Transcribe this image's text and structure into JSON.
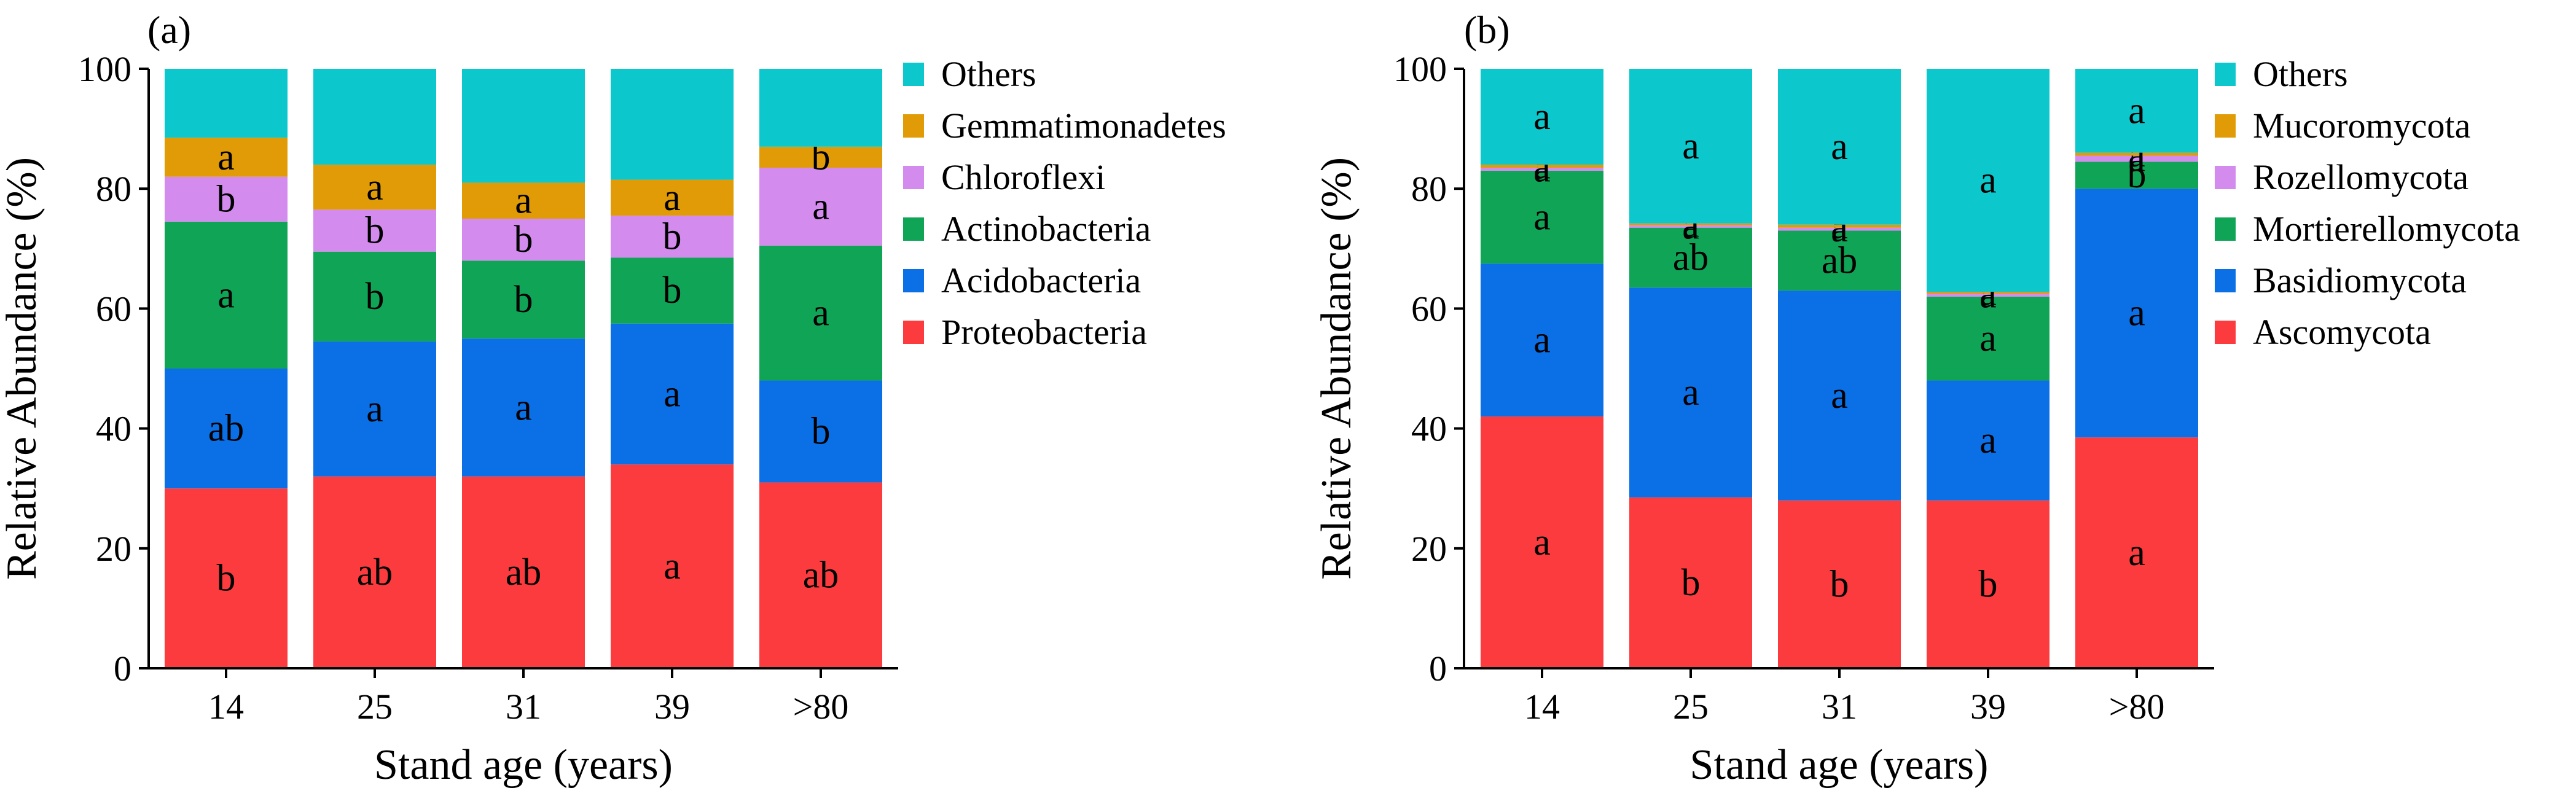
{
  "chart_data": [
    {
      "type": "bar",
      "stacked": true,
      "panel_label": "(a)",
      "title": "",
      "xlabel": "Stand age (years)",
      "ylabel": "Relative Abundance (%)",
      "ylim": [
        0,
        100
      ],
      "yticks": [
        "0",
        "20",
        "40",
        "60",
        "80",
        "100"
      ],
      "categories": [
        "14",
        "25",
        "31",
        "39",
        ">80"
      ],
      "legend_position": "right",
      "series": [
        {
          "name": "Proteobacteria",
          "color": "#fb3b3e",
          "values": [
            30,
            32,
            32,
            34,
            31
          ],
          "labels": [
            "b",
            "ab",
            "ab",
            "a",
            "ab"
          ]
        },
        {
          "name": "Acidobacteria",
          "color": "#0b6fe6",
          "values": [
            20,
            22.5,
            23,
            23.5,
            17
          ],
          "labels": [
            "ab",
            "a",
            "a",
            "a",
            "b"
          ]
        },
        {
          "name": "Actinobacteria",
          "color": "#10a556",
          "values": [
            24.5,
            15,
            13,
            11,
            22.5
          ],
          "labels": [
            "a",
            "b",
            "b",
            "b",
            "a"
          ]
        },
        {
          "name": "Chloroflexi",
          "color": "#d38bee",
          "values": [
            7.5,
            7,
            7,
            7,
            13
          ],
          "labels": [
            "b",
            "b",
            "b",
            "b",
            "a"
          ]
        },
        {
          "name": "Gemmatimonadetes",
          "color": "#e09b06",
          "values": [
            6.5,
            7.5,
            6,
            6,
            3.5
          ],
          "labels": [
            "a",
            "a",
            "a",
            "a",
            "b"
          ]
        },
        {
          "name": "Others",
          "color": "#0cc8cc",
          "values": [
            11.5,
            16,
            19,
            18.5,
            13
          ],
          "labels": [
            "",
            "",
            "",
            "",
            ""
          ]
        }
      ]
    },
    {
      "type": "bar",
      "stacked": true,
      "panel_label": "(b)",
      "title": "",
      "xlabel": "Stand age (years)",
      "ylabel": "Relative Abundance (%)",
      "ylim": [
        0,
        100
      ],
      "yticks": [
        "0",
        "20",
        "40",
        "60",
        "80",
        "100"
      ],
      "categories": [
        "14",
        "25",
        "31",
        "39",
        ">80"
      ],
      "legend_position": "right",
      "series": [
        {
          "name": "Ascomycota",
          "color": "#fb3b3e",
          "values": [
            42,
            28.5,
            28,
            28,
            38.5
          ],
          "labels": [
            "a",
            "b",
            "b",
            "b",
            "a"
          ]
        },
        {
          "name": "Basidiomycota",
          "color": "#0b6fe6",
          "values": [
            25.5,
            35,
            35,
            20,
            41.5
          ],
          "labels": [
            "a",
            "a",
            "a",
            "a",
            "a"
          ]
        },
        {
          "name": "Mortierellomycota",
          "color": "#10a556",
          "values": [
            15.5,
            10,
            10,
            14,
            4.5
          ],
          "labels": [
            "a",
            "ab",
            "ab",
            "a",
            "b"
          ]
        },
        {
          "name": "Rozellomycota",
          "color": "#d38bee",
          "values": [
            0.5,
            0.4,
            0.5,
            0.5,
            1
          ],
          "labels": [
            "a",
            "a",
            "a",
            "a",
            "a"
          ]
        },
        {
          "name": "Mucoromycota",
          "color": "#e09b06",
          "values": [
            0.5,
            0.3,
            0.5,
            0.3,
            0.5
          ],
          "labels": [
            "a",
            "a",
            "a",
            "a",
            "a"
          ]
        },
        {
          "name": "Others",
          "color": "#0cc8cc",
          "values": [
            16,
            25.8,
            26,
            37.2,
            14
          ],
          "labels": [
            "a",
            "a",
            "a",
            "a",
            "a"
          ]
        }
      ]
    }
  ]
}
